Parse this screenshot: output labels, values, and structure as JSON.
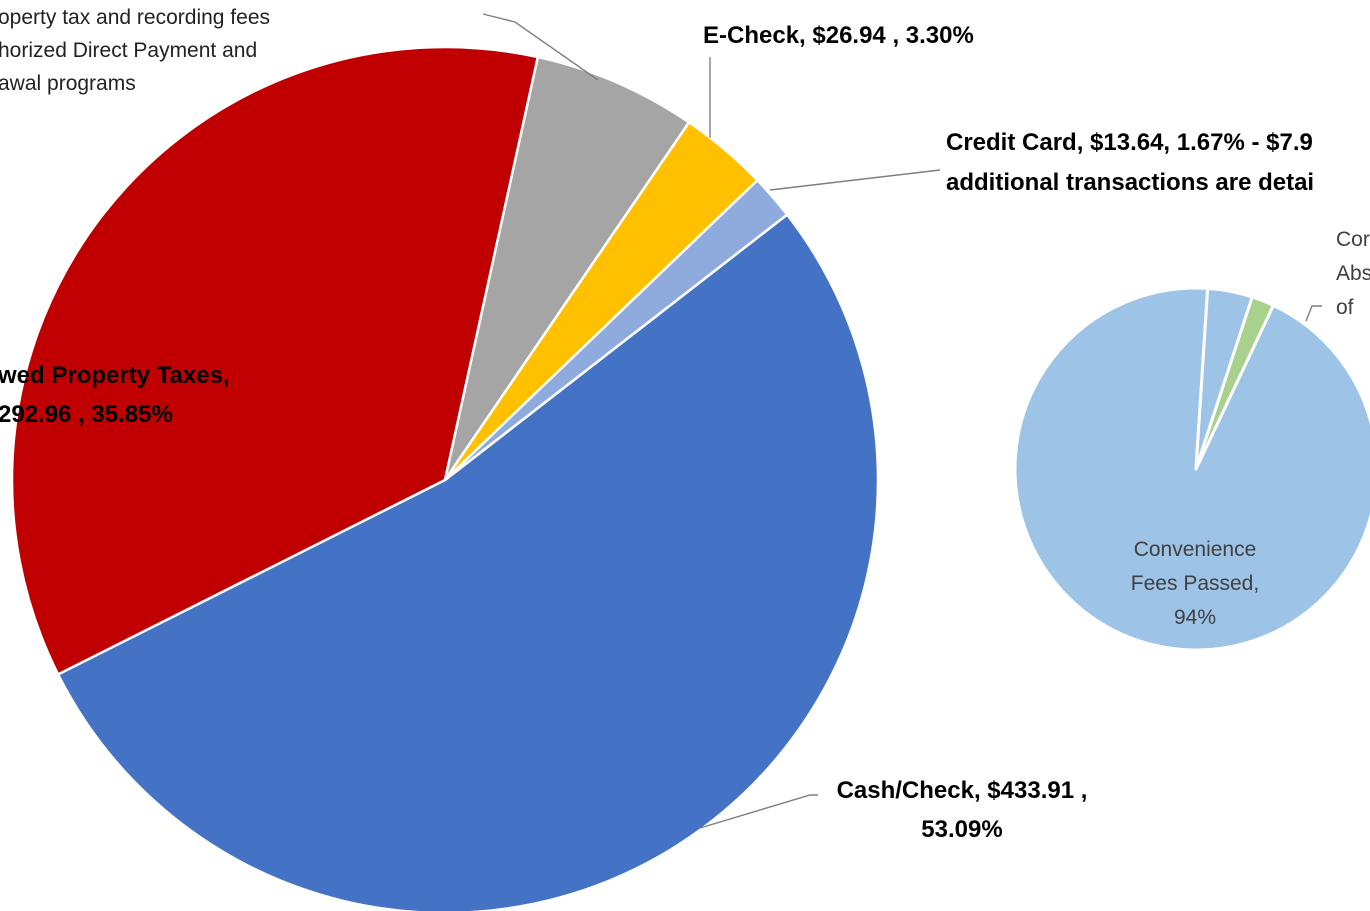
{
  "chart_data": [
    {
      "type": "pie",
      "slices": [
        {
          "label": "Cash/Check",
          "value": 433.91,
          "percent": 53.09,
          "color": "#4472C4",
          "text_lines": [
            "Cash/Check,  $433.91 ,",
            "53.09%"
          ]
        },
        {
          "label": "Property Taxes",
          "value": 292.96,
          "percent": 35.85,
          "color": "#C00000",
          "text_lines": [
            "wed Property Taxes,",
            "292.96 , 35.85%"
          ]
        },
        {
          "label": "",
          "value": null,
          "percent": 6.09,
          "color": "#A5A5A5",
          "text_lines": [
            "operty tax and recording fees",
            "horized Direct Payment and",
            "awal programs"
          ]
        },
        {
          "label": "E-Check",
          "value": 26.94,
          "percent": 3.3,
          "color": "#FFC000",
          "text_lines": [
            "E-Check,  $26.94 , 3.30%"
          ]
        },
        {
          "label": "Credit Card",
          "value": 13.64,
          "percent": 1.67,
          "color": "#8FAADC",
          "text_lines": [
            "Credit Card, $13.64, 1.67% - $7.9",
            "additional transactions are detai"
          ]
        }
      ]
    },
    {
      "type": "pie",
      "slices": [
        {
          "label": "Convenience Fees Passed",
          "percent": 94,
          "color": "#9DC3E6",
          "text_lines": [
            "Convenience",
            "Fees Passed,",
            "94%"
          ]
        },
        {
          "label": "",
          "percent": 2,
          "color": "#A9D18E",
          "text_lines": [
            "Cor",
            "Abs",
            "of"
          ]
        },
        {
          "label": "",
          "percent": 4,
          "color": "#9DC3E6",
          "text_lines": []
        }
      ]
    }
  ]
}
